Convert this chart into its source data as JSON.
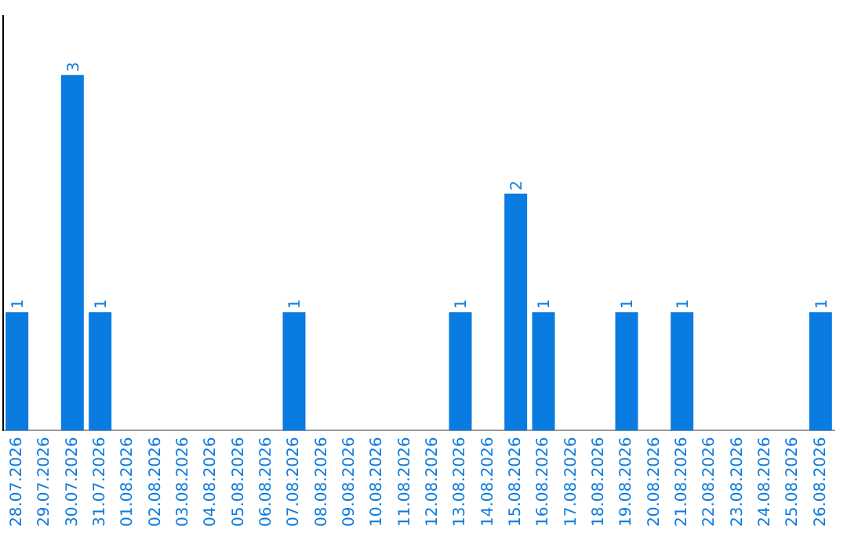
{
  "chart_data": {
    "type": "bar",
    "categories": [
      "28.07.2026",
      "29.07.2026",
      "30.07.2026",
      "31.07.2026",
      "01.08.2026",
      "02.08.2026",
      "03.08.2026",
      "04.08.2026",
      "05.08.2026",
      "06.08.2026",
      "07.08.2026",
      "08.08.2026",
      "09.08.2026",
      "10.08.2026",
      "11.08.2026",
      "12.08.2026",
      "13.08.2026",
      "14.08.2026",
      "15.08.2026",
      "16.08.2026",
      "17.08.2026",
      "18.08.2026",
      "19.08.2026",
      "20.08.2026",
      "21.08.2026",
      "22.08.2026",
      "23.08.2026",
      "24.08.2026",
      "25.08.2026",
      "26.08.2026"
    ],
    "values": [
      1,
      0,
      3,
      1,
      0,
      0,
      0,
      0,
      0,
      0,
      1,
      0,
      0,
      0,
      0,
      0,
      1,
      0,
      2,
      1,
      0,
      0,
      1,
      0,
      1,
      0,
      0,
      0,
      0,
      1
    ],
    "value_labels": [
      "1",
      null,
      "3",
      "1",
      null,
      null,
      null,
      null,
      null,
      null,
      "1",
      null,
      null,
      null,
      null,
      null,
      "1",
      null,
      "2",
      "1",
      null,
      null,
      "1",
      null,
      "1",
      null,
      null,
      null,
      null,
      "1"
    ],
    "color": "#0a7be0",
    "grid": false,
    "legend": false,
    "tick_labels": "x"
  }
}
